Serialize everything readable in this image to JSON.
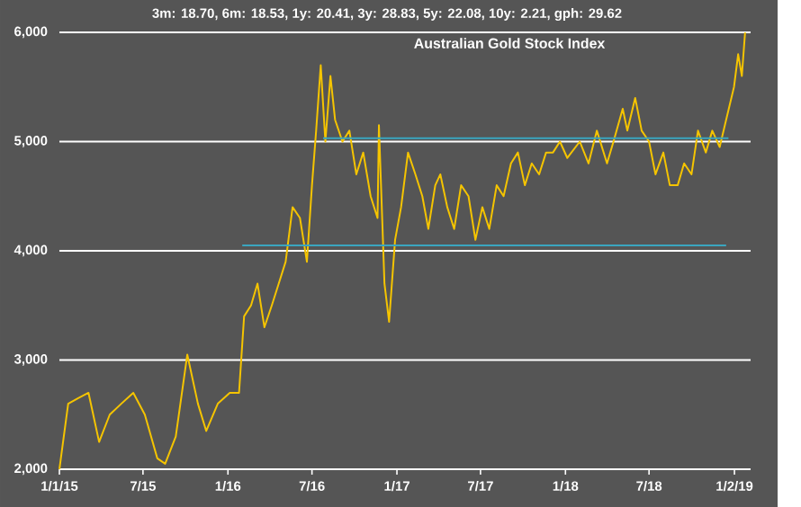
{
  "chart_data": {
    "type": "line",
    "title": "Australian Gold Stock Index",
    "subtitle": "3m: 18.70,   6m: 18.53,   1y: 20.41,   3y: 28.83,   5y: 22.08,   10y: 2.21,   gph: 29.62",
    "series": [
      {
        "color": "#f5c400",
        "x": [
          "2015-01-01",
          "2015-01-20",
          "2015-02-10",
          "2015-03-05",
          "2015-03-28",
          "2015-04-20",
          "2015-05-15",
          "2015-06-10",
          "2015-07-05",
          "2015-08-01",
          "2015-08-18",
          "2015-09-10",
          "2015-10-05",
          "2015-10-28",
          "2015-11-15",
          "2015-12-10",
          "2016-01-05",
          "2016-01-25",
          "2016-02-05",
          "2016-02-20",
          "2016-03-05",
          "2016-03-20",
          "2016-04-05",
          "2016-04-20",
          "2016-05-05",
          "2016-05-20",
          "2016-06-05",
          "2016-06-20",
          "2016-07-01",
          "2016-07-10",
          "2016-07-20",
          "2016-07-30",
          "2016-08-10",
          "2016-08-20",
          "2016-09-05",
          "2016-09-20",
          "2016-10-05",
          "2016-10-20",
          "2016-11-05",
          "2016-11-20",
          "2016-11-23",
          "2016-12-05",
          "2016-12-15",
          "2016-12-28",
          "2017-01-10",
          "2017-01-25",
          "2017-02-10",
          "2017-02-25",
          "2017-03-10",
          "2017-03-25",
          "2017-04-05",
          "2017-04-20",
          "2017-05-05",
          "2017-05-20",
          "2017-06-05",
          "2017-06-20",
          "2017-07-05",
          "2017-07-20",
          "2017-08-05",
          "2017-08-20",
          "2017-09-05",
          "2017-09-20",
          "2017-10-05",
          "2017-10-20",
          "2017-11-05",
          "2017-11-20",
          "2017-12-05",
          "2017-12-20",
          "2018-01-05",
          "2018-02-01",
          "2018-02-20",
          "2018-03-10",
          "2018-04-01",
          "2018-04-15",
          "2018-05-05",
          "2018-05-15",
          "2018-06-01",
          "2018-06-15",
          "2018-07-01",
          "2018-07-15",
          "2018-08-01",
          "2018-08-15",
          "2018-09-01",
          "2018-09-15",
          "2018-10-01",
          "2018-10-15",
          "2018-11-01",
          "2018-11-15",
          "2018-12-01",
          "2018-12-15",
          "2019-01-01",
          "2019-01-10",
          "2019-01-18",
          "2019-01-25"
        ],
        "values": [
          2000,
          2600,
          2650,
          2700,
          2250,
          2500,
          2600,
          2700,
          2500,
          2100,
          2050,
          2300,
          3050,
          2600,
          2350,
          2600,
          2700,
          2700,
          3400,
          3500,
          3700,
          3300,
          3500,
          3700,
          3900,
          4400,
          4300,
          3900,
          4600,
          5100,
          5700,
          5000,
          5600,
          5200,
          5000,
          5100,
          4700,
          4900,
          4500,
          4300,
          5150,
          3700,
          3350,
          4100,
          4400,
          4900,
          4700,
          4500,
          4200,
          4600,
          4700,
          4400,
          4200,
          4600,
          4500,
          4100,
          4400,
          4200,
          4600,
          4500,
          4800,
          4900,
          4600,
          4800,
          4700,
          4900,
          4900,
          5000,
          4850,
          5000,
          4800,
          5100,
          4800,
          5000,
          5300,
          5100,
          5400,
          5100,
          5000,
          4700,
          4900,
          4600,
          4600,
          4800,
          4700,
          5100,
          4900,
          5100,
          4950,
          5200,
          5500,
          5800,
          5600,
          6000
        ]
      },
      {
        "color": "#3aa6c0",
        "x": [
          "2016-07-25",
          "2018-12-20"
        ],
        "values": [
          5030,
          5030
        ]
      },
      {
        "color": "#3aa6c0",
        "x": [
          "2016-02-01",
          "2018-12-15"
        ],
        "values": [
          4050,
          4050
        ]
      }
    ],
    "xlim": [
      "2015-01-01",
      "2019-02-06"
    ],
    "xticks": [
      {
        "value": "2015-01-01",
        "label": "1/1/15"
      },
      {
        "value": "2015-07-01",
        "label": "7/15"
      },
      {
        "value": "2016-01-01",
        "label": "1/16"
      },
      {
        "value": "2016-07-01",
        "label": "7/16"
      },
      {
        "value": "2017-01-01",
        "label": "1/17"
      },
      {
        "value": "2017-07-01",
        "label": "7/17"
      },
      {
        "value": "2018-01-01",
        "label": "1/18"
      },
      {
        "value": "2018-07-01",
        "label": "7/18"
      },
      {
        "value": "2019-01-02",
        "label": "1/2/19"
      }
    ],
    "ylim": [
      2000,
      6000
    ],
    "yticks": [
      {
        "value": 2000,
        "label": "2,000"
      },
      {
        "value": 3000,
        "label": "3,000"
      },
      {
        "value": 4000,
        "label": "4,000"
      },
      {
        "value": 5000,
        "label": "5,000"
      },
      {
        "value": 6000,
        "label": "6,000"
      }
    ],
    "grid": "y",
    "marker": "none",
    "line_style": "solid"
  }
}
